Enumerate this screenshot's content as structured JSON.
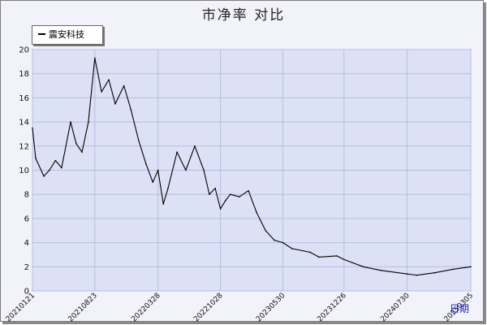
{
  "chart_data": {
    "type": "line",
    "title": "市净率  对比",
    "xlabel": "日期",
    "ylabel": "",
    "ylim": [
      0,
      20
    ],
    "yticks": [
      0,
      2,
      4,
      6,
      8,
      10,
      12,
      14,
      16,
      18,
      20
    ],
    "grid": true,
    "legend_position": "top-left",
    "xticks": [
      "20210121",
      "20210823",
      "20220328",
      "20221028",
      "20230530",
      "20231226",
      "20240730",
      "20250305"
    ],
    "series": [
      {
        "name": "震安科技",
        "color": "#000000",
        "x": [
          "20210121",
          "20210201",
          "20210301",
          "20210320",
          "20210410",
          "20210501",
          "20210601",
          "20210620",
          "20210710",
          "20210801",
          "20210823",
          "20210915",
          "20211010",
          "20211101",
          "20211201",
          "20211225",
          "20220120",
          "20220215",
          "20220310",
          "20220328",
          "20220415",
          "20220501",
          "20220601",
          "20220701",
          "20220801",
          "20220901",
          "20220920",
          "20221010",
          "20221028",
          "20221115",
          "20221201",
          "20230101",
          "20230201",
          "20230301",
          "20230401",
          "20230501",
          "20230530",
          "20230701",
          "20230901",
          "20231001",
          "20231201",
          "20231226",
          "20240301",
          "20240501",
          "20240730",
          "20240901",
          "20241101",
          "20250105",
          "20250305"
        ],
        "values": [
          13.5,
          11.0,
          9.5,
          10.0,
          10.8,
          10.2,
          14.0,
          12.2,
          11.5,
          14.0,
          19.3,
          16.5,
          17.5,
          15.5,
          17.0,
          15.0,
          12.5,
          10.5,
          9.0,
          10.0,
          7.2,
          8.5,
          11.5,
          10.0,
          12.0,
          10.0,
          8.0,
          8.5,
          6.8,
          7.5,
          8.0,
          7.8,
          8.3,
          6.5,
          5.0,
          4.2,
          4.0,
          3.5,
          3.2,
          2.8,
          2.9,
          2.6,
          2.0,
          1.7,
          1.4,
          1.3,
          1.5,
          1.8,
          2.0
        ]
      }
    ]
  }
}
